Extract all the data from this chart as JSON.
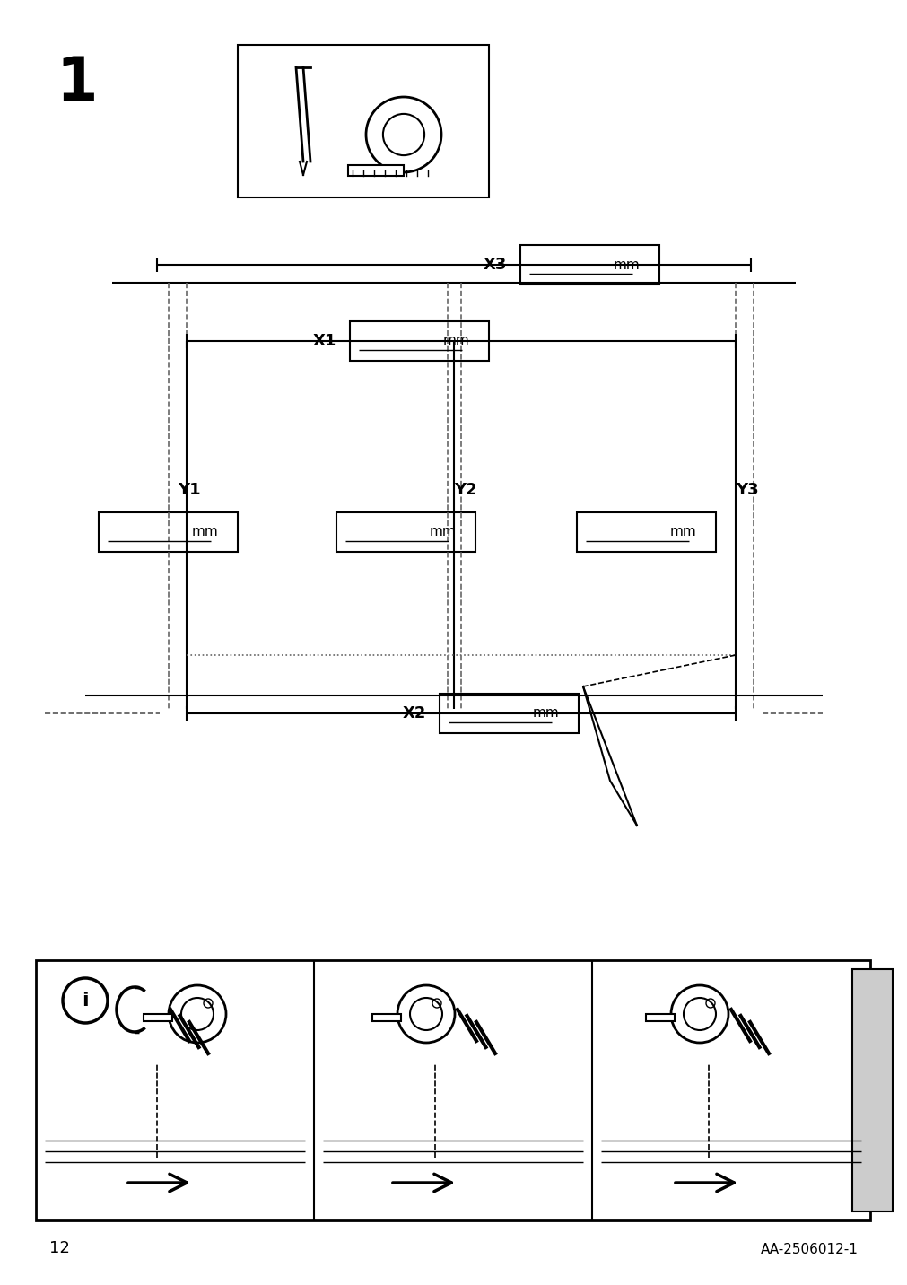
{
  "page_number": "12",
  "doc_id": "AA-2506012-1",
  "step_number": "1",
  "bg_color": "#ffffff",
  "line_color": "#000000",
  "dashed_color": "#888888",
  "label_x3": "X3",
  "label_x1": "X1",
  "label_x2": "X2",
  "label_y1": "Y1",
  "label_y2": "Y2",
  "label_y3": "Y3",
  "mm_label": "mm"
}
